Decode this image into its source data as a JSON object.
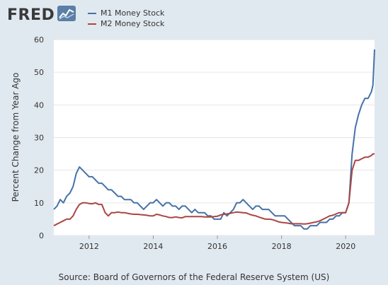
{
  "brand": {
    "logo_text": "FRED",
    "logo_icon": "line-chart-icon"
  },
  "source_text": "Source: Board of Governors of the Federal Reserve System (US)",
  "colors": {
    "background": "#e1e9f0",
    "plot": "#ffffff",
    "grid": "#e6e6e6",
    "m1": "#4572a7",
    "m2": "#aa4643"
  },
  "chart_data": {
    "type": "line",
    "ylabel": "Percent Change from Year Ago",
    "xlabel": "",
    "ylim": [
      0,
      60
    ],
    "xlim": [
      2010.9,
      2020.9
    ],
    "y_ticks": [
      0,
      10,
      20,
      30,
      40,
      50,
      60
    ],
    "x_ticks": [
      2012,
      2014,
      2016,
      2018,
      2020
    ],
    "grid": "horizontal",
    "legend_position": "top-left",
    "series": [
      {
        "name": "M1 Money Stock",
        "color": "#4572a7",
        "x": [
          2010.9,
          2011.0,
          2011.1,
          2011.2,
          2011.3,
          2011.4,
          2011.5,
          2011.6,
          2011.7,
          2011.8,
          2011.9,
          2012.0,
          2012.1,
          2012.2,
          2012.3,
          2012.4,
          2012.5,
          2012.6,
          2012.7,
          2012.8,
          2012.9,
          2013.0,
          2013.1,
          2013.2,
          2013.3,
          2013.4,
          2013.5,
          2013.6,
          2013.7,
          2013.8,
          2013.9,
          2014.0,
          2014.1,
          2014.2,
          2014.3,
          2014.4,
          2014.5,
          2014.6,
          2014.7,
          2014.8,
          2014.9,
          2015.0,
          2015.1,
          2015.2,
          2015.3,
          2015.4,
          2015.5,
          2015.6,
          2015.7,
          2015.8,
          2015.9,
          2016.0,
          2016.1,
          2016.2,
          2016.3,
          2016.4,
          2016.5,
          2016.6,
          2016.7,
          2016.8,
          2016.9,
          2017.0,
          2017.1,
          2017.2,
          2017.3,
          2017.4,
          2017.5,
          2017.6,
          2017.7,
          2017.8,
          2017.9,
          2018.0,
          2018.1,
          2018.2,
          2018.3,
          2018.4,
          2018.5,
          2018.6,
          2018.7,
          2018.8,
          2018.9,
          2019.0,
          2019.1,
          2019.2,
          2019.3,
          2019.4,
          2019.5,
          2019.6,
          2019.7,
          2019.8,
          2019.9,
          2020.0,
          2020.1,
          2020.2,
          2020.3,
          2020.4,
          2020.5,
          2020.6,
          2020.7,
          2020.8,
          2020.85,
          2020.9
        ],
        "values": [
          8,
          9,
          11,
          10,
          12,
          13,
          15,
          19,
          21,
          20,
          19,
          18,
          18,
          17,
          16,
          16,
          15,
          14,
          14,
          13,
          12,
          12,
          11,
          11,
          11,
          10,
          10,
          9,
          8,
          9,
          10,
          10,
          11,
          10,
          9,
          10,
          10,
          9,
          9,
          8,
          9,
          9,
          8,
          7,
          8,
          7,
          7,
          7,
          6,
          6,
          5,
          5,
          5,
          7,
          6,
          7,
          8,
          10,
          10,
          11,
          10,
          9,
          8,
          9,
          9,
          8,
          8,
          8,
          7,
          6,
          6,
          6,
          6,
          5,
          4,
          3,
          3,
          3,
          2,
          2,
          3,
          3,
          3,
          4,
          4,
          4,
          5,
          5,
          6,
          6,
          7,
          7,
          10,
          25,
          33,
          37,
          40,
          42,
          42,
          44,
          46,
          57
        ]
      },
      {
        "name": "M2 Money Stock",
        "color": "#aa4643",
        "x": [
          2010.9,
          2011.0,
          2011.1,
          2011.2,
          2011.3,
          2011.4,
          2011.5,
          2011.6,
          2011.7,
          2011.8,
          2011.9,
          2012.0,
          2012.1,
          2012.2,
          2012.3,
          2012.4,
          2012.5,
          2012.6,
          2012.7,
          2012.8,
          2012.9,
          2013.0,
          2013.1,
          2013.2,
          2013.3,
          2013.4,
          2013.5,
          2013.6,
          2013.7,
          2013.8,
          2013.9,
          2014.0,
          2014.1,
          2014.2,
          2014.3,
          2014.4,
          2014.5,
          2014.6,
          2014.7,
          2014.8,
          2014.9,
          2015.0,
          2015.1,
          2015.2,
          2015.3,
          2015.4,
          2015.5,
          2015.6,
          2015.7,
          2015.8,
          2015.9,
          2016.0,
          2016.1,
          2016.2,
          2016.3,
          2016.4,
          2016.5,
          2016.6,
          2016.7,
          2016.8,
          2016.9,
          2017.0,
          2017.1,
          2017.2,
          2017.3,
          2017.4,
          2017.5,
          2017.6,
          2017.7,
          2017.8,
          2017.9,
          2018.0,
          2018.1,
          2018.2,
          2018.3,
          2018.4,
          2018.5,
          2018.6,
          2018.7,
          2018.8,
          2018.9,
          2019.0,
          2019.1,
          2019.2,
          2019.3,
          2019.4,
          2019.5,
          2019.6,
          2019.7,
          2019.8,
          2019.9,
          2020.0,
          2020.1,
          2020.2,
          2020.3,
          2020.4,
          2020.5,
          2020.6,
          2020.7,
          2020.8,
          2020.85,
          2020.9
        ],
        "values": [
          3,
          3.5,
          4,
          4.5,
          5,
          5,
          6,
          8,
          9.5,
          10,
          10,
          9.8,
          9.7,
          10,
          9.5,
          9.5,
          7,
          6,
          7,
          7,
          7.2,
          7,
          7,
          6.8,
          6.6,
          6.5,
          6.5,
          6.4,
          6.3,
          6.2,
          6,
          6,
          6.5,
          6.3,
          6,
          5.8,
          5.5,
          5.5,
          5.7,
          5.5,
          5.4,
          5.8,
          5.8,
          5.8,
          5.8,
          5.8,
          5.8,
          5.7,
          5.7,
          5.7,
          5.8,
          5.9,
          6.3,
          6.5,
          6.6,
          6.8,
          7,
          7.2,
          7.1,
          7,
          6.9,
          6.5,
          6.2,
          6,
          5.6,
          5.3,
          5,
          5,
          4.9,
          4.6,
          4.2,
          4,
          3.9,
          3.8,
          3.6,
          3.6,
          3.6,
          3.6,
          3.5,
          3.6,
          3.8,
          4,
          4.2,
          4.5,
          5,
          5.5,
          6,
          6.2,
          6.6,
          7,
          7,
          7,
          10,
          20,
          23,
          23,
          23.5,
          24,
          24,
          24.5,
          25,
          25
        ]
      }
    ]
  }
}
